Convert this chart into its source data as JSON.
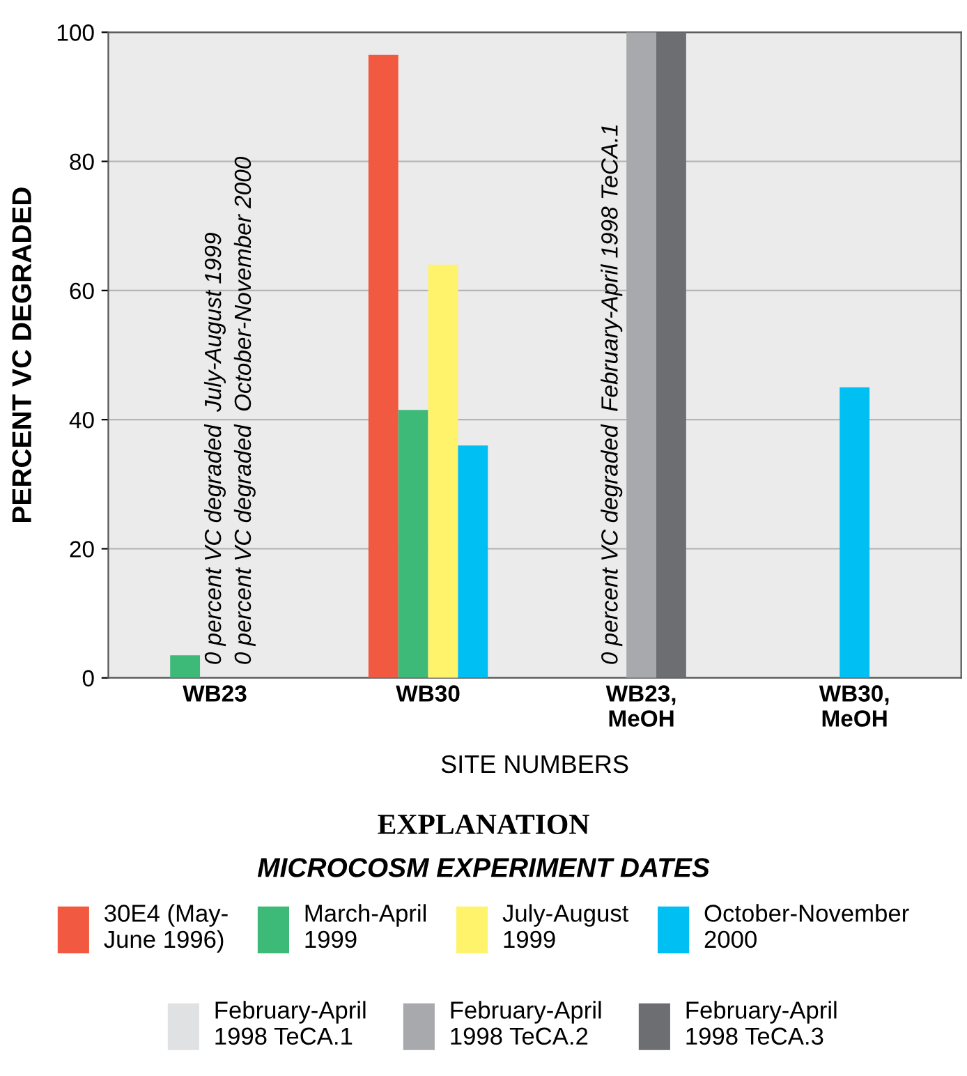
{
  "chart_data": {
    "type": "bar",
    "xlabel": "SITE NUMBERS",
    "ylabel": "PERCENT VC DEGRADED",
    "categories": [
      "WB23",
      "WB30",
      "WB23,\nMeOH",
      "WB30,\nMeOH"
    ],
    "series": [
      {
        "name": "30E4 (May-\nJune 1996)",
        "color": "#f15a40",
        "values": [
          null,
          96.5,
          null,
          null
        ]
      },
      {
        "name": "March-April\n1999",
        "color": "#3dba78",
        "values": [
          3.5,
          41.5,
          null,
          null
        ]
      },
      {
        "name": "July-August\n1999",
        "color": "#fff36b",
        "values": [
          0,
          64,
          null,
          null
        ]
      },
      {
        "name": "October-November\n2000",
        "color": "#00bff3",
        "values": [
          0,
          36,
          null,
          45
        ]
      },
      {
        "name": "February-April\n1998 TeCA.1",
        "color": "#e0e1e3",
        "values": [
          null,
          null,
          0,
          null
        ]
      },
      {
        "name": "February-April\n1998 TeCA.2",
        "color": "#a7a9ac",
        "values": [
          null,
          null,
          100,
          null
        ]
      },
      {
        "name": "February-April\n1998 TeCA.3",
        "color": "#6d6e71",
        "values": [
          null,
          null,
          100,
          null
        ]
      }
    ],
    "ylim": [
      0,
      100
    ],
    "yticks": [
      0,
      20,
      40,
      60,
      80,
      100
    ],
    "grid": "y",
    "legend": "bottom",
    "legend_title": "MICROCOSM EXPERIMENT DATES",
    "annotations": [
      {
        "text": "0 percent VC degraded  July-August 1999",
        "x": "WB23",
        "y": 0
      },
      {
        "text": "0 percent VC degraded  October-November 2000",
        "x": "WB23",
        "y": 0
      },
      {
        "text": "0 percent VC degraded  February-April 1998 TeCA.1",
        "x": "WB23,\nMeOH",
        "y": 0
      },
      "EXPLANATION"
    ]
  }
}
